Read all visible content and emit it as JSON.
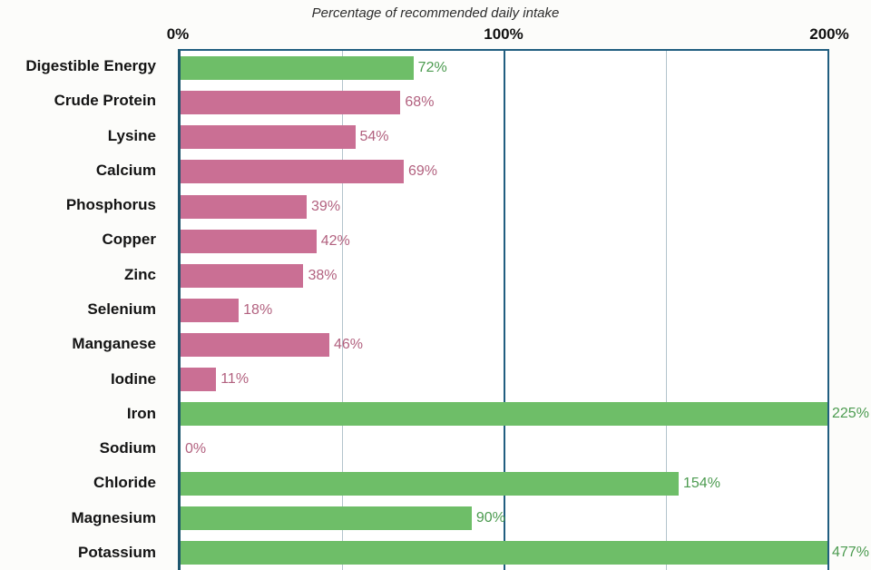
{
  "chart_data": {
    "type": "bar",
    "orientation": "horizontal",
    "title": "Percentage of recommended daily intake",
    "x_axis": {
      "max": 200,
      "ticks": [
        {
          "label": "0%",
          "value": 0
        },
        {
          "label": "100%",
          "value": 100
        },
        {
          "label": "200%",
          "value": 200
        }
      ],
      "minor_gridlines": [
        50,
        150
      ],
      "major_gridlines": [
        100
      ]
    },
    "rows": [
      {
        "label": "Digestible Energy",
        "value": 72,
        "display": "72%",
        "color": "green"
      },
      {
        "label": "Crude Protein",
        "value": 68,
        "display": "68%",
        "color": "pink"
      },
      {
        "label": "Lysine",
        "value": 54,
        "display": "54%",
        "color": "pink"
      },
      {
        "label": "Calcium",
        "value": 69,
        "display": "69%",
        "color": "pink"
      },
      {
        "label": "Phosphorus",
        "value": 39,
        "display": "39%",
        "color": "pink"
      },
      {
        "label": "Copper",
        "value": 42,
        "display": "42%",
        "color": "pink"
      },
      {
        "label": "Zinc",
        "value": 38,
        "display": "38%",
        "color": "pink"
      },
      {
        "label": "Selenium",
        "value": 18,
        "display": "18%",
        "color": "pink"
      },
      {
        "label": "Manganese",
        "value": 46,
        "display": "46%",
        "color": "pink"
      },
      {
        "label": "Iodine",
        "value": 11,
        "display": "11%",
        "color": "pink"
      },
      {
        "label": "Iron",
        "value": 225,
        "display": "225%",
        "color": "green"
      },
      {
        "label": "Sodium",
        "value": 0,
        "display": "0%",
        "color": "pink"
      },
      {
        "label": "Chloride",
        "value": 154,
        "display": "154%",
        "color": "green"
      },
      {
        "label": "Magnesium",
        "value": 90,
        "display": "90%",
        "color": "green"
      },
      {
        "label": "Potassium",
        "value": 477,
        "display": "477%",
        "color": "green"
      }
    ],
    "colors": {
      "green_bar": "#6ebe68",
      "pink_bar": "#ca6f94",
      "green_label": "#4c9b50",
      "pink_label": "#b2617f",
      "axis_dark": "#215e80",
      "grid_light": "#b3c4cc",
      "background": "#fcfcfa"
    }
  }
}
